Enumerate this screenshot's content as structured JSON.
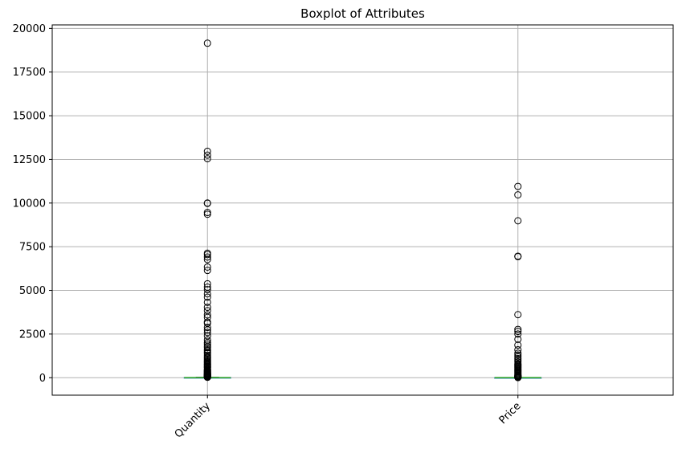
{
  "chart_data": {
    "type": "boxplot",
    "title": "Boxplot of Attributes",
    "xlabel": "",
    "ylabel": "",
    "categories": [
      "Quantity",
      "Price"
    ],
    "ylim": [
      -1000,
      20200
    ],
    "yticks": [
      0,
      2500,
      5000,
      7500,
      10000,
      12500,
      15000,
      17500,
      20000
    ],
    "ytick_labels": [
      "0",
      "2500",
      "5000",
      "7500",
      "10000",
      "12500",
      "15000",
      "17500",
      "20000"
    ],
    "grid": true,
    "xtick_rotation": 45,
    "colors": {
      "median": "#2ca02c",
      "box": "#1f77b4",
      "grid": "#b0b0b0",
      "flier": "#000000"
    },
    "boxes": [
      {
        "name": "Quantity",
        "q1": 1,
        "median": 3,
        "q3": 10,
        "whisker_low": 1,
        "whisker_high": 23,
        "fliers": [
          19152,
          12960,
          12744,
          12540,
          10000,
          9984,
          9460,
          9360,
          7128,
          7056,
          6912,
          6768,
          6336,
          6144,
          5376,
          5184,
          5040,
          4800,
          4608,
          4320,
          4032,
          3840,
          3600,
          3456,
          3186,
          3114,
          2880,
          2736,
          2592,
          2400,
          2160,
          2016,
          1920,
          1800,
          1728,
          1600,
          1536,
          1440,
          1400,
          1296,
          1200,
          1152,
          1080,
          1000,
          960,
          900,
          864,
          800,
          768,
          720,
          672,
          640,
          600,
          576,
          500,
          480,
          432,
          400,
          384,
          360,
          336,
          300,
          288,
          256,
          240,
          216,
          200,
          192,
          180,
          160,
          150,
          144,
          128,
          120,
          100,
          96,
          80,
          72,
          64,
          60,
          50,
          48,
          40,
          36,
          32,
          30,
          25
        ]
      },
      {
        "name": "Price",
        "q1": 1.25,
        "median": 2.1,
        "q3": 4.13,
        "whisker_low": 0,
        "whisker_high": 8.45,
        "fliers": [
          10953,
          10469,
          8985,
          6958,
          6931,
          3610,
          2767,
          2653,
          2500,
          2200,
          1867,
          1600,
          1400,
          1300,
          1200,
          1100,
          1000,
          900,
          800,
          750,
          700,
          650,
          600,
          550,
          500,
          450,
          400,
          350,
          300,
          250,
          200,
          150,
          125,
          100,
          80,
          60,
          50,
          40,
          30,
          20,
          15,
          10
        ]
      }
    ]
  }
}
